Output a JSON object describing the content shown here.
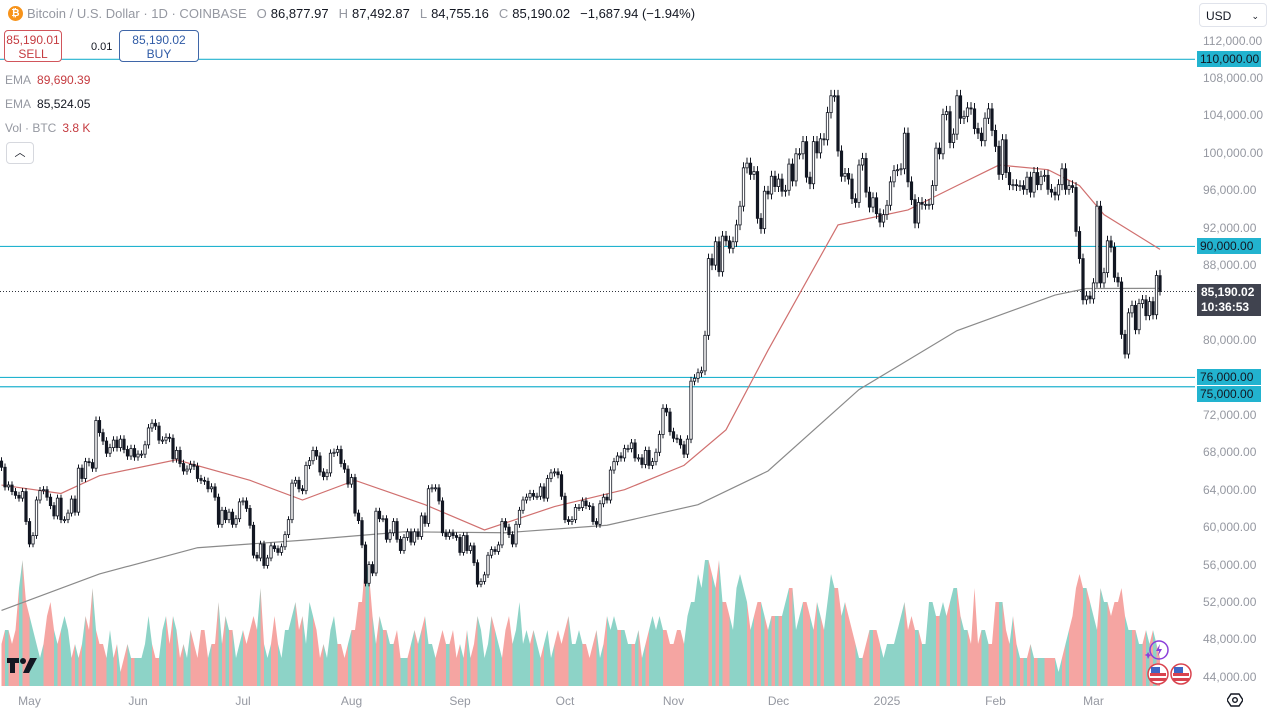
{
  "header": {
    "symbol_icon": "bitcoin-icon",
    "title": "Bitcoin / U.S. Dollar · 1D · COINBASE",
    "open_label": "O",
    "open": "86,877.97",
    "high_label": "H",
    "high": "87,492.87",
    "low_label": "L",
    "low": "84,755.16",
    "close_label": "C",
    "close": "85,190.02",
    "change": "−1,687.94 (−1.94%)"
  },
  "trade": {
    "sell_price": "85,190.01",
    "sell_label": "SELL",
    "spread": "0.01",
    "buy_price": "85,190.02",
    "buy_label": "BUY"
  },
  "legend": [
    {
      "name": "EMA",
      "value": "89,690.39",
      "color": "#c53b40"
    },
    {
      "name": "EMA",
      "value": "85,524.05",
      "color": "#131722"
    },
    {
      "name": "Vol · BTC",
      "value": "3.8 K",
      "color": "#c53b40"
    }
  ],
  "currency": "USD",
  "current_price_label": {
    "price": "85,190.02",
    "countdown": "10:36:53"
  },
  "colors": {
    "hline": "#22b3cf",
    "ema_fast": "#d0706f",
    "ema_slow": "#8a8a8a",
    "vol_up": "#8dd3c7",
    "vol_down": "#f5a5a2",
    "candle_up": "#ffffff",
    "candle_down": "#131722"
  },
  "chart_data": {
    "type": "candlestick",
    "title": "",
    "ylim": [
      43000,
      113500
    ],
    "y_ticks": [
      "112,000.00",
      "108,000.00",
      "104,000.00",
      "100,000.00",
      "96,000.00",
      "92,000.00",
      "88,000.00",
      "80,000.00",
      "72,000.00",
      "68,000.00",
      "64,000.00",
      "60,000.00",
      "56,000.00",
      "52,000.00",
      "48,000.00",
      "44,000.00"
    ],
    "x_ticks": [
      {
        "label": "May",
        "date": "2024-05-01"
      },
      {
        "label": "Jun",
        "date": "2024-06-01"
      },
      {
        "label": "Jul",
        "date": "2024-07-01"
      },
      {
        "label": "Aug",
        "date": "2024-08-01"
      },
      {
        "label": "Sep",
        "date": "2024-09-01"
      },
      {
        "label": "Oct",
        "date": "2024-10-01"
      },
      {
        "label": "Nov",
        "date": "2024-11-01"
      },
      {
        "label": "Dec",
        "date": "2024-12-01"
      },
      {
        "label": "2025",
        "date": "2025-01-01"
      },
      {
        "label": "Feb",
        "date": "2025-02-01"
      },
      {
        "label": "Mar",
        "date": "2025-03-01"
      }
    ],
    "horizontal_lines": [
      {
        "price": 110000,
        "label": "110,000.00"
      },
      {
        "price": 90000,
        "label": "90,000.00"
      },
      {
        "price": 76000,
        "label": "76,000.00"
      },
      {
        "price": 75000,
        "label": "75,000.00"
      }
    ],
    "current_price": 85190.02,
    "daily_closes_k": [
      {
        "month": "2024-04",
        "first_day": 23,
        "closes": [
          66.4,
          64.3,
          64.5,
          63.8,
          63.4,
          63.1,
          63.8,
          60.6
        ]
      },
      {
        "month": "2024-05",
        "first_day": 1,
        "closes": [
          58.2,
          59.1,
          62.9,
          63.9,
          64.0,
          63.2,
          62.3,
          61.2,
          63.1,
          60.8,
          60.8,
          61.5,
          63.0,
          61.6,
          66.3,
          65.2,
          67.0,
          66.9,
          66.3,
          71.4,
          70.1,
          69.2,
          67.9,
          68.5,
          69.3,
          68.5,
          69.4,
          68.3,
          67.6,
          68.4,
          67.5
        ]
      },
      {
        "month": "2024-06",
        "first_day": 1,
        "closes": [
          67.8,
          67.8,
          68.8,
          70.6,
          71.1,
          70.8,
          69.3,
          69.3,
          69.6,
          69.5,
          67.3,
          68.2,
          66.8,
          66.0,
          66.2,
          66.7,
          66.5,
          65.2,
          65.0,
          64.9,
          64.1,
          64.3,
          63.2,
          60.3,
          61.8,
          60.8,
          61.6,
          60.3,
          60.9,
          62.7
        ]
      },
      {
        "month": "2024-07",
        "first_day": 1,
        "closes": [
          62.8,
          62.0,
          60.2,
          57.0,
          56.7,
          58.2,
          55.9,
          56.7,
          58.0,
          57.7,
          57.3,
          57.9,
          59.2,
          60.8,
          64.7,
          65.0,
          64.1,
          63.9,
          66.6,
          67.1,
          68.2,
          67.6,
          65.9,
          65.4,
          65.8,
          67.9,
          68.0,
          68.3,
          66.8,
          66.2,
          64.6
        ]
      },
      {
        "month": "2024-08",
        "first_day": 1,
        "closes": [
          65.3,
          61.5,
          60.7,
          58.1,
          54.0,
          56.0,
          55.1,
          61.7,
          60.9,
          60.9,
          58.7,
          59.4,
          60.6,
          58.7,
          57.5,
          58.9,
          59.5,
          58.4,
          59.5,
          59.0,
          61.2,
          60.4,
          64.1,
          64.2,
          64.2,
          62.8,
          59.4,
          59.0,
          59.4,
          59.1,
          58.9
        ]
      },
      {
        "month": "2024-09",
        "first_day": 1,
        "closes": [
          57.3,
          59.1,
          57.5,
          58.0,
          56.2,
          53.9,
          54.2,
          54.9,
          57.0,
          57.6,
          57.4,
          58.1,
          60.6,
          60.0,
          59.2,
          58.2,
          60.3,
          61.8,
          62.9,
          63.2,
          63.6,
          63.3,
          63.3,
          64.3,
          63.1,
          65.2,
          65.8,
          65.9,
          65.6,
          63.3
        ]
      },
      {
        "month": "2024-10",
        "first_day": 1,
        "closes": [
          60.8,
          60.6,
          60.8,
          62.1,
          62.1,
          62.8,
          62.3,
          62.2,
          60.6,
          60.3,
          62.5,
          63.2,
          62.9,
          66.1,
          67.0,
          67.6,
          67.4,
          68.4,
          68.4,
          69.0,
          67.4,
          67.4,
          66.7,
          68.2,
          66.6,
          67.0,
          68.0,
          69.9,
          72.7,
          72.3,
          70.2
        ]
      },
      {
        "month": "2024-11",
        "first_day": 1,
        "closes": [
          69.5,
          69.4,
          68.8,
          67.8,
          69.4,
          75.6,
          75.9,
          76.5,
          76.7,
          80.5,
          88.7,
          88.0,
          90.5,
          87.3,
          91.1,
          90.6,
          89.8,
          90.5,
          92.3,
          94.3,
          98.4,
          98.9,
          97.7,
          98.0,
          93.0,
          91.9,
          95.9,
          95.6,
          97.5,
          96.4
        ]
      },
      {
        "month": "2024-12",
        "first_day": 1,
        "closes": [
          97.2,
          95.9,
          96.0,
          98.8,
          97.0,
          99.9,
          99.9,
          101.2,
          97.4,
          96.7,
          101.2,
          100.0,
          101.5,
          101.4,
          104.3,
          106.1,
          106.1,
          100.2,
          97.5,
          97.8,
          97.2,
          95.1,
          94.7,
          98.7,
          99.4,
          95.8,
          94.2,
          95.2,
          93.5,
          92.6,
          93.4
        ]
      },
      {
        "month": "2025-01",
        "first_day": 1,
        "closes": [
          94.4,
          96.9,
          98.1,
          98.2,
          98.3,
          102.1,
          96.9,
          95.0,
          92.5,
          94.7,
          94.5,
          94.5,
          94.5,
          96.5,
          100.5,
          99.9,
          104.1,
          104.4,
          101.1,
          102.0,
          106.1,
          103.7,
          103.9,
          104.8,
          104.7,
          102.6,
          102.1,
          101.3,
          103.7,
          104.7,
          102.4
        ]
      },
      {
        "month": "2025-02",
        "first_day": 1,
        "closes": [
          100.7,
          97.7,
          101.4,
          97.9,
          96.6,
          96.6,
          96.5,
          96.5,
          96.1,
          97.4,
          95.8,
          97.9,
          96.6,
          97.5,
          97.6,
          96.1,
          95.8,
          95.5,
          96.6,
          98.3,
          96.1,
          96.5,
          96.3,
          91.6,
          88.7,
          84.3,
          84.7,
          84.4
        ]
      },
      {
        "month": "2025-03",
        "first_day": 1,
        "closes": [
          86.1,
          94.3,
          86.1,
          87.2,
          90.6,
          89.9,
          86.7,
          86.2,
          80.6,
          78.5,
          82.9,
          83.7,
          81.1,
          83.9,
          84.3,
          82.6,
          84.1,
          82.7,
          86.9,
          85.19
        ]
      }
    ],
    "last_candle": {
      "open": 86877.97,
      "high": 87492.87,
      "low": 84755.16,
      "close": 85190.02
    },
    "volume_levels_by_month": [
      "34434796",
      "5432356434542323547433242312322",
      "223532245354232432442336354423",
      "4345473235324456453654232453323",
      "4466985354433422234345332343342",
      "324235423543245346343432342343",
      "4533433234235454443334234545443",
      "344356687998796654787645665455",
      "5567745665465468775654322344432",
      "3334564544336655656775443734433",
      "6664353222322222221234578776",
      "54766566754443343432"
    ],
    "ema_fast": [
      [
        "2024-04-23",
        64500
      ],
      [
        "2024-05-10",
        63600
      ],
      [
        "2024-05-21",
        65500
      ],
      [
        "2024-06-12",
        67200
      ],
      [
        "2024-07-03",
        65000
      ],
      [
        "2024-07-18",
        62900
      ],
      [
        "2024-08-02",
        65000
      ],
      [
        "2024-08-22",
        62400
      ],
      [
        "2024-09-08",
        59700
      ],
      [
        "2024-09-28",
        62200
      ],
      [
        "2024-10-18",
        64000
      ],
      [
        "2024-11-04",
        66600
      ],
      [
        "2024-11-16",
        70400
      ],
      [
        "2024-11-28",
        78900
      ],
      [
        "2024-12-18",
        92300
      ],
      [
        "2025-01-07",
        93900
      ],
      [
        "2025-01-21",
        96500
      ],
      [
        "2025-02-02",
        98700
      ],
      [
        "2025-02-16",
        98200
      ],
      [
        "2025-02-25",
        96500
      ],
      [
        "2025-03-04",
        93400
      ],
      [
        "2025-03-20",
        89690
      ]
    ],
    "ema_slow": [
      [
        "2024-04-23",
        51100
      ],
      [
        "2024-05-21",
        55000
      ],
      [
        "2024-06-18",
        57800
      ],
      [
        "2024-07-18",
        58600
      ],
      [
        "2024-08-16",
        59500
      ],
      [
        "2024-09-14",
        59400
      ],
      [
        "2024-10-13",
        60200
      ],
      [
        "2024-11-08",
        62400
      ],
      [
        "2024-11-28",
        66000
      ],
      [
        "2024-12-24",
        74700
      ],
      [
        "2025-01-21",
        81000
      ],
      [
        "2025-02-18",
        84800
      ],
      [
        "2025-02-27",
        85500
      ],
      [
        "2025-03-20",
        85524
      ]
    ]
  }
}
